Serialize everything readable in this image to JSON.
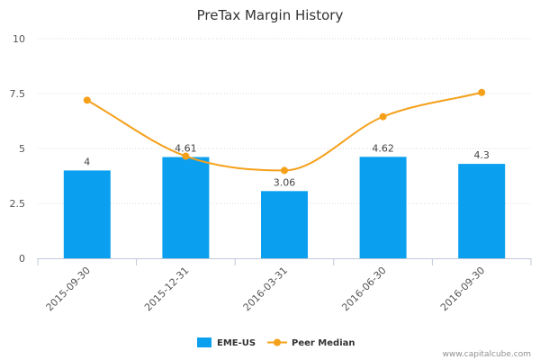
{
  "chart_data": {
    "type": "bar",
    "title": "PreTax Margin History",
    "categories": [
      "2015-09-30",
      "2015-12-31",
      "2016-03-31",
      "2016-06-30",
      "2016-09-30"
    ],
    "series": [
      {
        "name": "EME-US",
        "type": "bar",
        "values": [
          4,
          4.61,
          3.06,
          4.62,
          4.3
        ],
        "labels": [
          "4",
          "4.61",
          "3.06",
          "4.62",
          "4.3"
        ],
        "color": "#0aa0ef"
      },
      {
        "name": "Peer Median",
        "type": "line",
        "smooth": true,
        "values": [
          7.2,
          4.65,
          4.0,
          6.45,
          7.55
        ],
        "color": "#f5a01a"
      }
    ],
    "yticks": [
      "0",
      "2.5",
      "5",
      "7.5",
      "10"
    ],
    "ylim": [
      0,
      10
    ],
    "legend": "bottom-center"
  },
  "credit": "www.capitalcube.com"
}
